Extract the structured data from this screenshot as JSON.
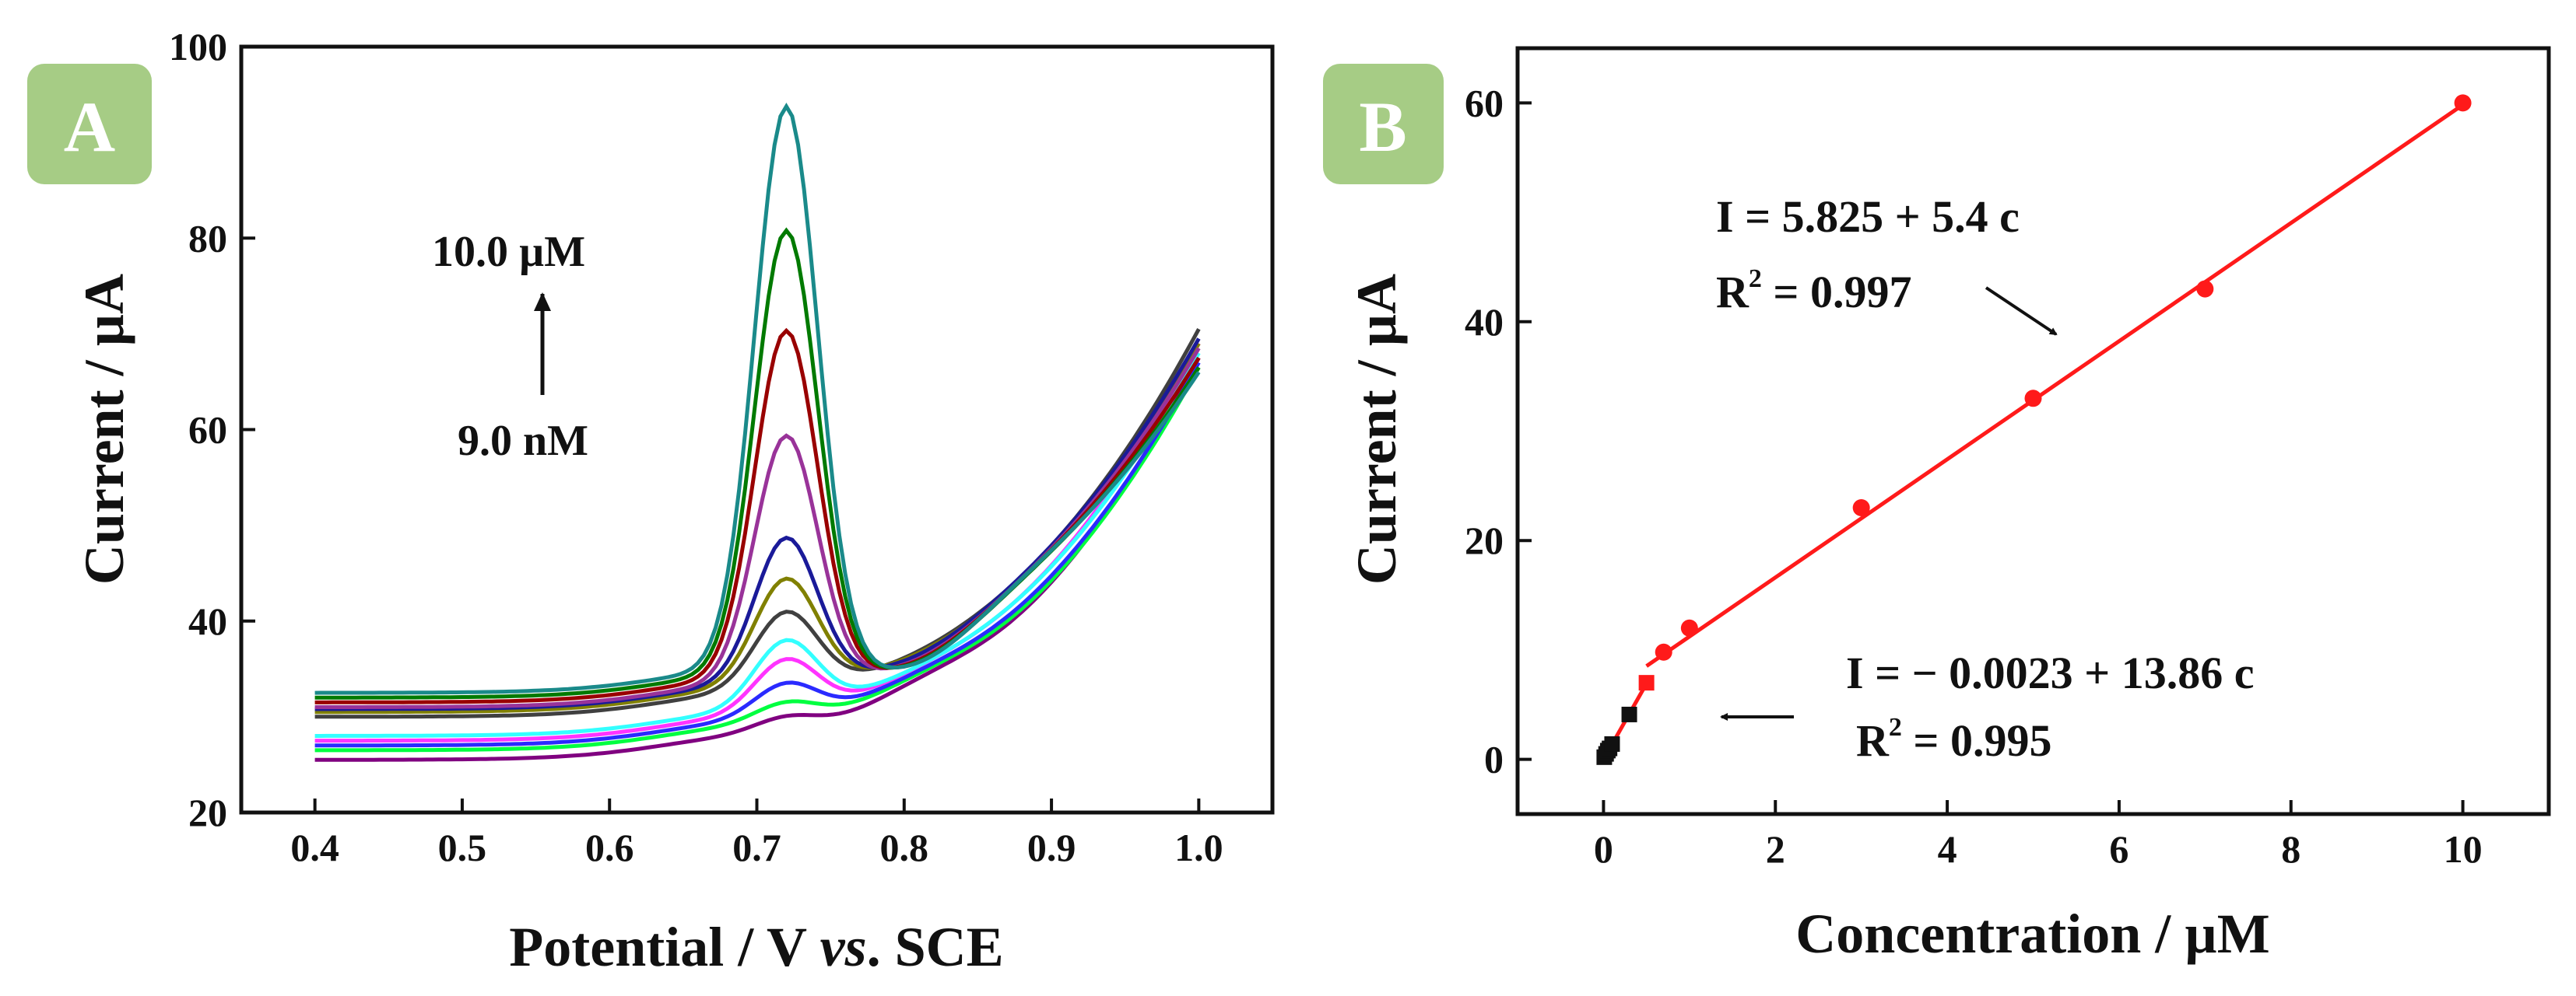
{
  "colors": {
    "background": "#ffffff",
    "axes": "#111111",
    "badge_fill": "#a6cc85",
    "badge_text": "#ffffff",
    "fit_line": "#ff1a1a",
    "point_red": "#ff1a1a",
    "point_black": "#111111"
  },
  "chart_data": [
    {
      "panel": "A",
      "type": "line",
      "title": "",
      "badge": "A",
      "xlabel": "Potential / V vs. SCE",
      "xlabel_parts": {
        "pre": "Potential / V ",
        "italic": "vs",
        "post": ". SCE"
      },
      "ylabel": "Current / µA",
      "xlim": [
        0.35,
        1.05
      ],
      "ylim": [
        20,
        100
      ],
      "xticks": [
        0.4,
        0.5,
        0.6,
        0.7,
        0.8,
        0.9,
        1.0
      ],
      "xtick_labels": [
        "0.4",
        "0.5",
        "0.6",
        "0.7",
        "0.8",
        "0.9",
        "1.0"
      ],
      "yticks": [
        20,
        40,
        60,
        80,
        100
      ],
      "ytick_labels": [
        "20",
        "40",
        "60",
        "80",
        "100"
      ],
      "annotation": {
        "top": "10.0 µM",
        "bottom": "9.0 nM",
        "arrow": "up"
      },
      "series": [
        {
          "name": "curve-1",
          "color": "#800080",
          "base": 25.5,
          "end": 67.5,
          "peak": 1.5,
          "post": 1.5
        },
        {
          "name": "curve-2",
          "color": "#00ff40",
          "base": 26.5,
          "end": 66.5,
          "peak": 2.0,
          "post": 1.2
        },
        {
          "name": "curve-3",
          "color": "#2a2aff",
          "base": 27.0,
          "end": 67.0,
          "peak": 3.5,
          "post": 1.0
        },
        {
          "name": "curve-4",
          "color": "#ff33ff",
          "base": 27.5,
          "end": 69.0,
          "peak": 5.5,
          "post": 0.8
        },
        {
          "name": "curve-5",
          "color": "#33ffff",
          "base": 28.0,
          "end": 68.0,
          "peak": 7.0,
          "post": 0.5
        },
        {
          "name": "curve-6",
          "color": "#404040",
          "base": 30.0,
          "end": 70.5,
          "peak": 8.0,
          "post": 0.0
        },
        {
          "name": "curve-7",
          "color": "#808000",
          "base": 30.5,
          "end": 69.0,
          "peak": 11.0,
          "post": -0.5
        },
        {
          "name": "curve-8",
          "color": "#1a1a99",
          "base": 30.8,
          "end": 69.5,
          "peak": 15.0,
          "post": -1.0
        },
        {
          "name": "curve-9",
          "color": "#993399",
          "base": 31.0,
          "end": 68.5,
          "peak": 25.5,
          "post": -1.5
        },
        {
          "name": "curve-10",
          "color": "#990000",
          "base": 31.5,
          "end": 67.5,
          "peak": 36.0,
          "post": -2.0
        },
        {
          "name": "curve-11",
          "color": "#007a00",
          "base": 32.0,
          "end": 66.5,
          "peak": 46.0,
          "post": -2.5
        },
        {
          "name": "curve-12",
          "color": "#1a8a8a",
          "base": 32.5,
          "end": 66.0,
          "peak": 58.5,
          "post": -3.0
        }
      ]
    },
    {
      "panel": "B",
      "type": "scatter",
      "title": "",
      "badge": "B",
      "xlabel": "Concentration / µM",
      "ylabel": "Current / µA",
      "xlim": [
        -1,
        11
      ],
      "ylim": [
        -5,
        65
      ],
      "xticks": [
        0,
        2,
        4,
        6,
        8,
        10
      ],
      "xtick_labels": [
        "0",
        "2",
        "4",
        "6",
        "8",
        "10"
      ],
      "yticks": [
        0,
        20,
        40,
        60
      ],
      "ytick_labels": [
        "0",
        "20",
        "40",
        "60"
      ],
      "points_black": {
        "x": [
          0.009,
          0.03,
          0.05,
          0.07,
          0.1,
          0.3
        ],
        "y": [
          0.2,
          0.5,
          0.8,
          1.0,
          1.4,
          4.1
        ]
      },
      "points_red": {
        "x": [
          0.5,
          0.7,
          1.0,
          3.0,
          5.0,
          7.0,
          10.0
        ],
        "y": [
          7.0,
          9.8,
          12.0,
          23.0,
          33.0,
          43.0,
          60.0
        ]
      },
      "fits": [
        {
          "name": "low-range",
          "slope": 13.86,
          "intercept": -0.0023,
          "x_range": [
            0.0,
            0.5
          ]
        },
        {
          "name": "high-range",
          "slope": 5.4,
          "intercept": 5.825,
          "x_range": [
            0.5,
            10.0
          ]
        }
      ],
      "equation_high": {
        "eq": "I = 5.825 + 5.4 c",
        "r2_label": "R",
        "r2_sup": "2",
        "r2_value": " = 0.997"
      },
      "equation_low": {
        "eq": "I = − 0.0023 + 13.86 c",
        "r2_label": "R",
        "r2_sup": "2",
        "r2_value": " = 0.995"
      }
    }
  ]
}
